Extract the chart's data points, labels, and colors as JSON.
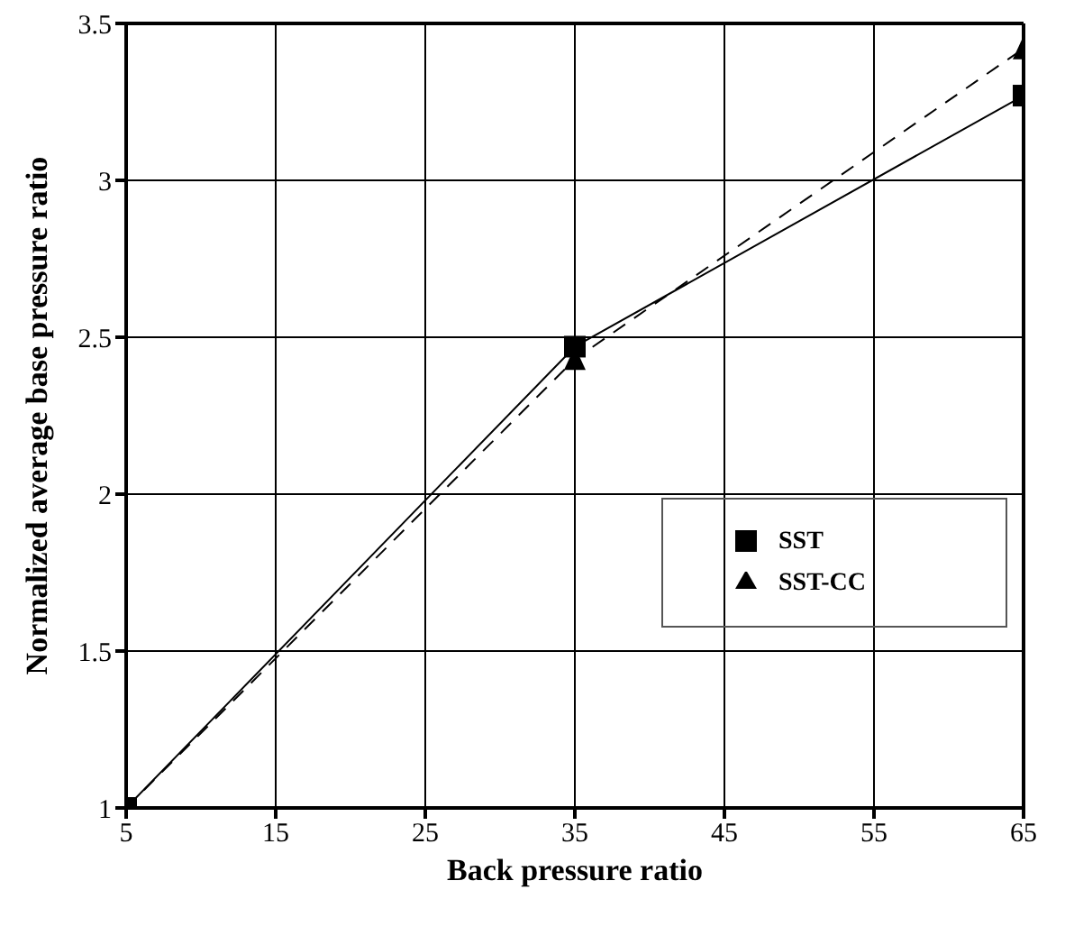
{
  "chart_data": {
    "type": "line",
    "xlabel": "Back pressure ratio",
    "ylabel": "Normalized average base pressure ratio",
    "x": [
      5,
      35,
      65
    ],
    "series": [
      {
        "name": "SST",
        "color": "#000000",
        "values": [
          1,
          2.47,
          3.27
        ],
        "marker": "square",
        "line_style": "solid"
      },
      {
        "name": "SST-CC",
        "color": "#000000",
        "values": [
          1,
          2.43,
          3.42
        ],
        "marker": "triangle",
        "line_style": "dashed"
      }
    ],
    "xlim": [
      5,
      65
    ],
    "xticks": [
      5,
      15,
      25,
      35,
      45,
      55,
      65
    ],
    "ylim": [
      1,
      3.5
    ],
    "yticks": [
      1,
      1.5,
      2,
      2.5,
      3,
      3.5
    ],
    "grid": true,
    "legend": "right"
  }
}
